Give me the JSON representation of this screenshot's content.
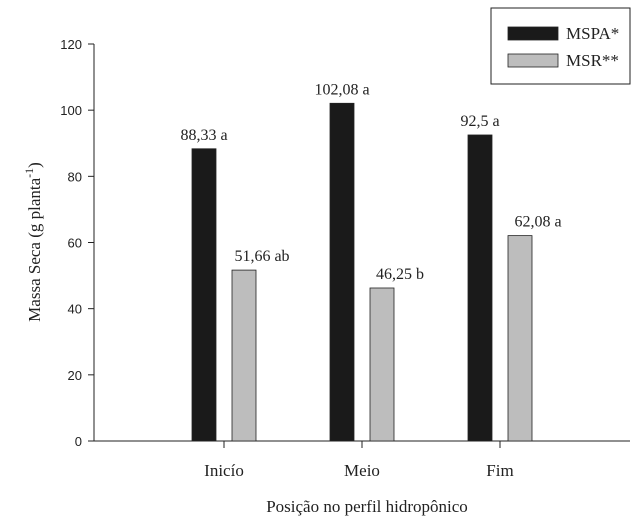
{
  "chart_data": {
    "type": "bar",
    "categories": [
      "Inicío",
      "Meio",
      "Fim"
    ],
    "series": [
      {
        "name": "MSPA*",
        "color": "#1a1a1a",
        "values": [
          88.33,
          102.08,
          92.5
        ],
        "labels": [
          "88,33 a",
          "102,08 a",
          "92,5 a"
        ]
      },
      {
        "name": "MSR**",
        "color": "#bdbdbd",
        "values": [
          51.66,
          46.25,
          62.08
        ],
        "labels": [
          "51,66 ab",
          "46,25 b",
          "62,08 a"
        ]
      }
    ],
    "xlabel": "Posição no perfil hidropônico",
    "ylabel": "Massa Seca (g planta",
    "ylabel_sup": "-1",
    "ylabel_end": ")",
    "ylim": [
      0,
      120
    ],
    "yticks": [
      "0",
      "20",
      "40",
      "60",
      "80",
      "100",
      "120"
    ],
    "legend_position": "top-right",
    "grid": false
  }
}
